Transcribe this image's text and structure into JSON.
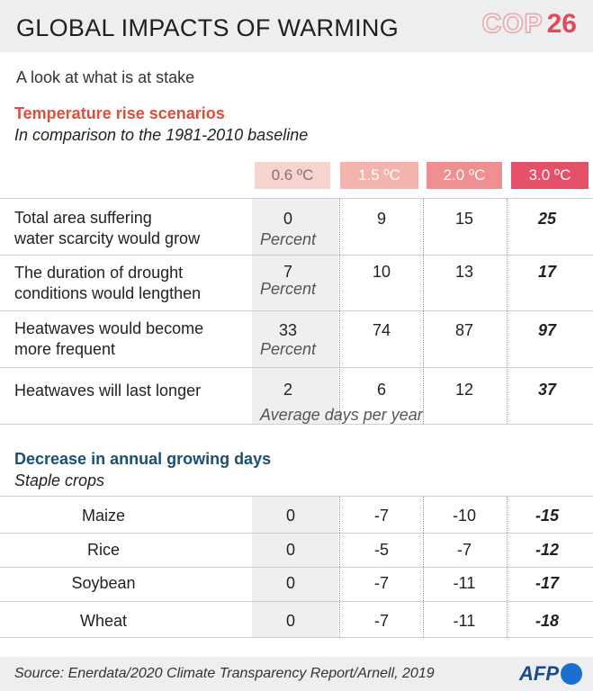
{
  "header": {
    "title": "GLOBAL IMPACTS OF WARMING",
    "logo_cop": "COP",
    "logo_num": "26"
  },
  "subtitle": "A look at what is at stake",
  "section1": {
    "title": "Temperature rise scenarios",
    "subtitle": "In comparison to the 1981-2010 baseline",
    "columns": [
      "0.6 ºC",
      "1.5 ºC",
      "2.0 ºC",
      "3.0 ºC"
    ],
    "column_colors": [
      "#f6d3cf",
      "#f3b4ae",
      "#ef8f92",
      "#e45068"
    ],
    "rows": [
      {
        "label_line1": "Total area suffering",
        "label_line2": "water scarcity would grow",
        "values": [
          "0",
          "9",
          "15",
          "25"
        ],
        "unit": "Percent"
      },
      {
        "label_line1": "The duration of drought",
        "label_line2": "conditions would lengthen",
        "values": [
          "7",
          "10",
          "13",
          "17"
        ],
        "unit": "Percent"
      },
      {
        "label_line1": "Heatwaves would become",
        "label_line2": "more frequent",
        "values": [
          "33",
          "74",
          "87",
          "97"
        ],
        "unit": "Percent"
      },
      {
        "label_line1": "Heatwaves will last longer",
        "label_line2": "",
        "values": [
          "2",
          "6",
          "12",
          "37"
        ],
        "unit": "Average days per year"
      }
    ]
  },
  "section2": {
    "title": "Decrease in annual growing days",
    "subtitle": "Staple crops",
    "rows": [
      {
        "label": "Maize",
        "values": [
          "0",
          "-7",
          "-10",
          "-15"
        ]
      },
      {
        "label": "Rice",
        "values": [
          "0",
          "-5",
          "-7",
          "-12"
        ]
      },
      {
        "label": "Soybean",
        "values": [
          "0",
          "-7",
          "-11",
          "-17"
        ]
      },
      {
        "label": "Wheat",
        "values": [
          "0",
          "-7",
          "-11",
          "-18"
        ]
      }
    ]
  },
  "footer": {
    "source": "Source: Enerdata/2020 Climate Transparency Report/Arnell, 2019",
    "logo": "AFP"
  }
}
